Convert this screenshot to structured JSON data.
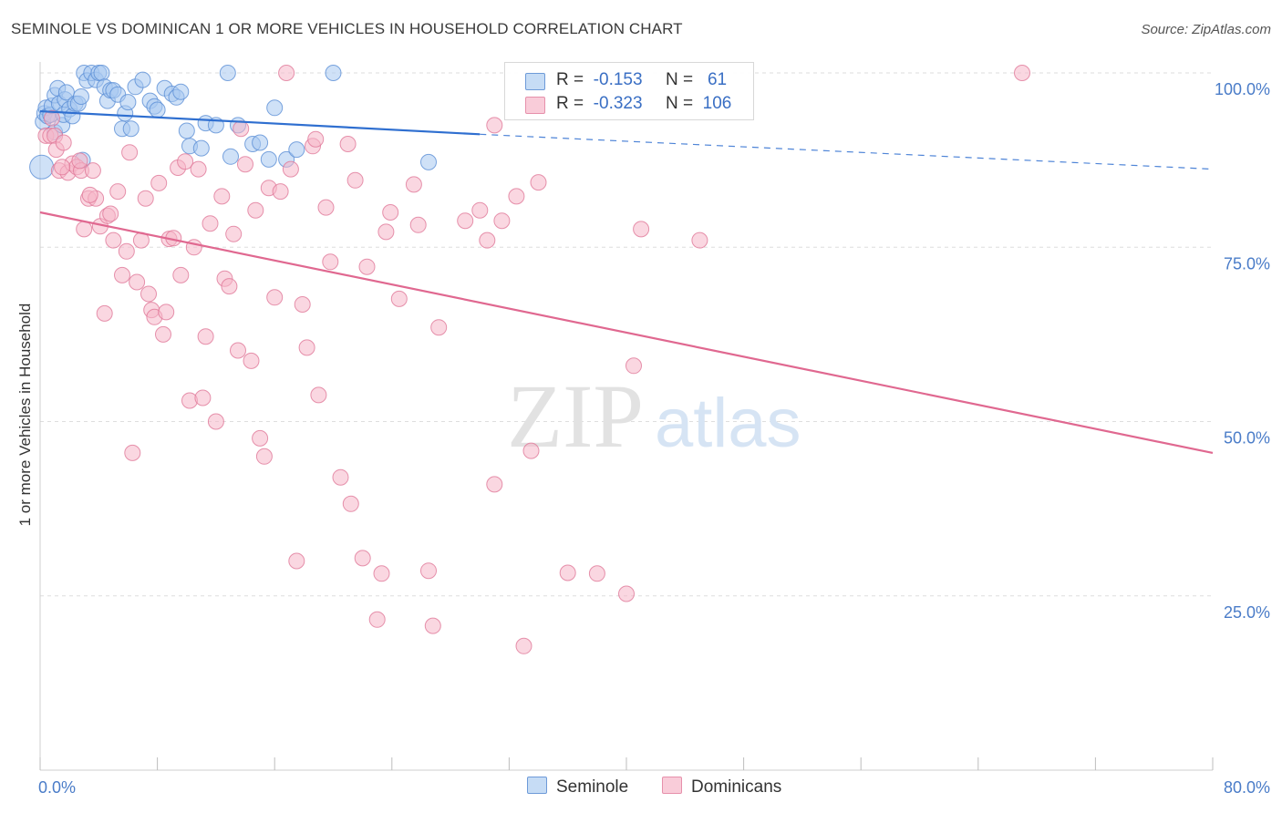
{
  "title": "SEMINOLE VS DOMINICAN 1 OR MORE VEHICLES IN HOUSEHOLD CORRELATION CHART",
  "source": "Source: ZipAtlas.com",
  "watermark": {
    "zip": "ZIP",
    "atlas": "atlas"
  },
  "legend_top": {
    "rows": [
      {
        "r_label": "R =",
        "r_value": "-0.153",
        "n_label": "N =",
        "n_value": "61",
        "color": "#a8c8f0"
      },
      {
        "r_label": "R =",
        "r_value": "-0.323",
        "n_label": "N =",
        "n_value": "106",
        "color": "#f6b6c9"
      }
    ]
  },
  "legend_bottom": [
    {
      "label": "Seminole",
      "color": "#a8c8f0"
    },
    {
      "label": "Dominicans",
      "color": "#f6b6c9"
    }
  ],
  "chart_data": {
    "type": "scatter",
    "title": "SEMINOLE VS DOMINICAN 1 OR MORE VEHICLES IN HOUSEHOLD CORRELATION CHART",
    "xlabel": "",
    "ylabel": "1 or more Vehicles in Household",
    "xlim": [
      0,
      80
    ],
    "ylim": [
      0,
      100
    ],
    "x_tick_labels": [
      "0.0%",
      "80.0%"
    ],
    "y_ticks": [
      25,
      50,
      75,
      100
    ],
    "y_tick_labels": [
      "25.0%",
      "50.0%",
      "75.0%",
      "100.0%"
    ],
    "grid": true,
    "legend_position": "top-center",
    "series": [
      {
        "name": "Seminole",
        "color": "#a8c8f0",
        "edge": "#5b8fd6",
        "trend": {
          "color": "#2f6fd0",
          "x0": 0,
          "y0": 94.5,
          "x1": 30,
          "y1": 91.2,
          "dash_to_x": 80,
          "dash_to_y": 86.2
        },
        "points": [
          [
            0.1,
            86.5
          ],
          [
            0.2,
            93
          ],
          [
            0.3,
            94.2
          ],
          [
            0.4,
            95
          ],
          [
            0.5,
            93.8
          ],
          [
            0.7,
            94
          ],
          [
            0.8,
            95.3
          ],
          [
            1,
            91.5
          ],
          [
            1,
            96.8
          ],
          [
            1.2,
            97.8
          ],
          [
            1.3,
            95.6
          ],
          [
            1.5,
            92.5
          ],
          [
            1.6,
            94
          ],
          [
            1.7,
            96.2
          ],
          [
            1.8,
            97.2
          ],
          [
            2,
            94.8
          ],
          [
            2.2,
            93.8
          ],
          [
            2.4,
            95.6
          ],
          [
            2.6,
            95.6
          ],
          [
            2.8,
            96.6
          ],
          [
            3,
            100
          ],
          [
            3.2,
            98.9
          ],
          [
            3.5,
            100
          ],
          [
            3.8,
            99
          ],
          [
            4,
            100
          ],
          [
            4.2,
            100
          ],
          [
            4.4,
            98
          ],
          [
            4.6,
            96
          ],
          [
            4.8,
            97.5
          ],
          [
            5,
            97.5
          ],
          [
            5.3,
            96.9
          ],
          [
            5.6,
            92
          ],
          [
            5.8,
            94.2
          ],
          [
            6,
            95.8
          ],
          [
            6.2,
            92
          ],
          [
            6.5,
            98
          ],
          [
            7,
            99
          ],
          [
            7.5,
            96
          ],
          [
            7.8,
            95.2
          ],
          [
            8,
            94.7
          ],
          [
            8.5,
            97.8
          ],
          [
            9,
            97
          ],
          [
            9.3,
            96.5
          ],
          [
            9.6,
            97.3
          ],
          [
            10,
            91.7
          ],
          [
            10.2,
            89.5
          ],
          [
            11,
            89.2
          ],
          [
            11.3,
            92.8
          ],
          [
            12,
            92.5
          ],
          [
            12.8,
            100
          ],
          [
            13,
            88
          ],
          [
            13.5,
            92.5
          ],
          [
            14.5,
            89.8
          ],
          [
            15,
            90
          ],
          [
            15.6,
            87.6
          ],
          [
            16,
            95
          ],
          [
            16.8,
            87.6
          ],
          [
            17.5,
            89
          ],
          [
            20,
            100
          ],
          [
            26.5,
            87.2
          ],
          [
            2.9,
            87.5
          ]
        ]
      },
      {
        "name": "Dominicans",
        "color": "#f6b6c9",
        "edge": "#e07898",
        "trend": {
          "color": "#e06890",
          "x0": 0,
          "y0": 80,
          "x1": 80,
          "y1": 45.5
        },
        "points": [
          [
            0.4,
            91
          ],
          [
            0.7,
            91
          ],
          [
            1,
            91
          ],
          [
            1.1,
            89
          ],
          [
            1.3,
            86
          ],
          [
            1.6,
            90
          ],
          [
            1.9,
            85.7
          ],
          [
            2.2,
            87
          ],
          [
            2.5,
            86.5
          ],
          [
            2.8,
            86
          ],
          [
            3,
            77.6
          ],
          [
            3.3,
            82
          ],
          [
            3.6,
            86
          ],
          [
            3.8,
            82
          ],
          [
            4.1,
            78
          ],
          [
            4.4,
            65.5
          ],
          [
            4.6,
            79.5
          ],
          [
            4.8,
            79.8
          ],
          [
            5,
            76
          ],
          [
            5.3,
            83
          ],
          [
            5.6,
            71
          ],
          [
            5.9,
            74.4
          ],
          [
            6.1,
            88.6
          ],
          [
            6.3,
            45.5
          ],
          [
            6.6,
            70
          ],
          [
            6.9,
            76
          ],
          [
            7.2,
            82
          ],
          [
            7.4,
            68.3
          ],
          [
            7.6,
            66
          ],
          [
            7.8,
            65
          ],
          [
            8.1,
            84.2
          ],
          [
            8.4,
            62.5
          ],
          [
            8.6,
            65.7
          ],
          [
            8.8,
            76.2
          ],
          [
            9.1,
            76.3
          ],
          [
            9.4,
            86.4
          ],
          [
            9.6,
            71
          ],
          [
            9.9,
            87.3
          ],
          [
            10.2,
            53
          ],
          [
            10.5,
            75
          ],
          [
            10.8,
            86.2
          ],
          [
            11.1,
            53.4
          ],
          [
            11.3,
            62.2
          ],
          [
            11.6,
            78.4
          ],
          [
            12,
            50
          ],
          [
            12.4,
            82.3
          ],
          [
            12.6,
            70.5
          ],
          [
            12.9,
            69.4
          ],
          [
            13.2,
            76.9
          ],
          [
            13.5,
            60.2
          ],
          [
            13.7,
            92
          ],
          [
            14,
            86.9
          ],
          [
            14.4,
            58.7
          ],
          [
            14.7,
            80.3
          ],
          [
            15,
            47.6
          ],
          [
            15.3,
            45
          ],
          [
            15.6,
            83.5
          ],
          [
            16,
            67.8
          ],
          [
            16.4,
            83
          ],
          [
            16.8,
            100
          ],
          [
            17.1,
            86.2
          ],
          [
            17.5,
            30
          ],
          [
            17.9,
            66.8
          ],
          [
            18.2,
            60.6
          ],
          [
            18.6,
            89.5
          ],
          [
            19,
            53.8
          ],
          [
            19.5,
            80.7
          ],
          [
            19.8,
            72.9
          ],
          [
            20.5,
            42
          ],
          [
            21,
            89.8
          ],
          [
            21.2,
            38.2
          ],
          [
            21.5,
            84.6
          ],
          [
            22,
            30.4
          ],
          [
            22.3,
            72.2
          ],
          [
            23,
            21.6
          ],
          [
            23.3,
            28.2
          ],
          [
            23.6,
            77.2
          ],
          [
            23.9,
            80
          ],
          [
            24.5,
            67.6
          ],
          [
            25.5,
            84
          ],
          [
            25.8,
            78.2
          ],
          [
            26.5,
            28.6
          ],
          [
            26.8,
            20.7
          ],
          [
            27.2,
            63.5
          ],
          [
            29,
            78.8
          ],
          [
            30,
            80.3
          ],
          [
            30.5,
            76
          ],
          [
            31,
            92.5
          ],
          [
            31,
            41
          ],
          [
            31.5,
            78.8
          ],
          [
            32.5,
            82.3
          ],
          [
            33,
            17.8
          ],
          [
            33.5,
            45.8
          ],
          [
            34,
            84.3
          ],
          [
            36,
            28.3
          ],
          [
            38,
            28.2
          ],
          [
            40,
            25.3
          ],
          [
            40.5,
            58
          ],
          [
            41,
            77.6
          ],
          [
            45,
            76
          ],
          [
            67,
            100
          ],
          [
            0.8,
            93.5
          ],
          [
            1.5,
            86.5
          ],
          [
            2.7,
            87.4
          ],
          [
            3.4,
            82.5
          ],
          [
            18.8,
            90.5
          ]
        ]
      }
    ]
  }
}
